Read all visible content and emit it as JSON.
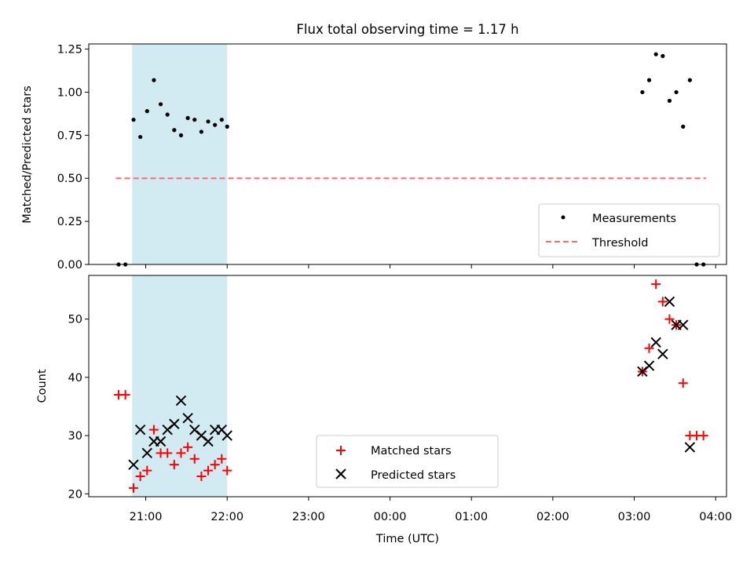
{
  "title": "Flux total observing time = 1.17 h",
  "shared_x": {
    "label": "Time (UTC)",
    "range": [
      "2023-01-01T20:18",
      "2023-01-02T04:08"
    ],
    "ticks": [
      {
        "t": "2023-01-01T21:00",
        "label": "21:00"
      },
      {
        "t": "2023-01-01T22:00",
        "label": "22:00"
      },
      {
        "t": "2023-01-01T23:00",
        "label": "23:00"
      },
      {
        "t": "2023-01-02T00:00",
        "label": "00:00"
      },
      {
        "t": "2023-01-02T01:00",
        "label": "01:00"
      },
      {
        "t": "2023-01-02T02:00",
        "label": "02:00"
      },
      {
        "t": "2023-01-02T03:00",
        "label": "03:00"
      },
      {
        "t": "2023-01-02T04:00",
        "label": "04:00"
      }
    ],
    "observing_span": {
      "start": "2023-01-01T20:50",
      "end": "2023-01-01T22:00",
      "color": "#add8e6"
    }
  },
  "colors": {
    "measurement": "#000000",
    "threshold": "#ff6b6b",
    "matched": "#ff0000",
    "predicted": "#000000",
    "span": "#add8e6"
  },
  "chart_data": [
    {
      "type": "scatter",
      "ylabel": "Matched/Predicted stars",
      "ylim": [
        0,
        1.28
      ],
      "yticks": [
        0.0,
        0.25,
        0.5,
        0.75,
        1.0,
        1.25
      ],
      "ytick_labels": [
        "0.00",
        "0.25",
        "0.50",
        "0.75",
        "1.00",
        "1.25"
      ],
      "legend_position": "lower-right",
      "series": [
        {
          "name": "Measurements",
          "marker": "dot",
          "points": [
            {
              "x": "2023-01-01T20:40",
              "y": 0.0
            },
            {
              "x": "2023-01-01T20:45",
              "y": 0.0
            },
            {
              "x": "2023-01-01T20:51",
              "y": 0.84
            },
            {
              "x": "2023-01-01T20:56",
              "y": 0.74
            },
            {
              "x": "2023-01-01T21:01",
              "y": 0.89
            },
            {
              "x": "2023-01-01T21:06",
              "y": 1.07
            },
            {
              "x": "2023-01-01T21:11",
              "y": 0.93
            },
            {
              "x": "2023-01-01T21:16",
              "y": 0.87
            },
            {
              "x": "2023-01-01T21:21",
              "y": 0.78
            },
            {
              "x": "2023-01-01T21:26",
              "y": 0.75
            },
            {
              "x": "2023-01-01T21:31",
              "y": 0.85
            },
            {
              "x": "2023-01-01T21:36",
              "y": 0.84
            },
            {
              "x": "2023-01-01T21:41",
              "y": 0.77
            },
            {
              "x": "2023-01-01T21:46",
              "y": 0.83
            },
            {
              "x": "2023-01-01T21:51",
              "y": 0.81
            },
            {
              "x": "2023-01-01T21:56",
              "y": 0.84
            },
            {
              "x": "2023-01-01T22:00",
              "y": 0.8
            },
            {
              "x": "2023-01-02T03:06",
              "y": 1.0
            },
            {
              "x": "2023-01-02T03:11",
              "y": 1.07
            },
            {
              "x": "2023-01-02T03:16",
              "y": 1.22
            },
            {
              "x": "2023-01-02T03:21",
              "y": 1.21
            },
            {
              "x": "2023-01-02T03:26",
              "y": 0.95
            },
            {
              "x": "2023-01-02T03:31",
              "y": 1.0
            },
            {
              "x": "2023-01-02T03:36",
              "y": 0.8
            },
            {
              "x": "2023-01-02T03:41",
              "y": 1.07
            },
            {
              "x": "2023-01-02T03:46",
              "y": 0.0
            },
            {
              "x": "2023-01-02T03:51",
              "y": 0.0
            }
          ]
        },
        {
          "name": "Threshold",
          "style": "dashed-line",
          "points": [
            {
              "x": "2023-01-01T20:38",
              "y": 0.5
            },
            {
              "x": "2023-01-02T03:53",
              "y": 0.5
            }
          ]
        }
      ]
    },
    {
      "type": "scatter",
      "xlabel": "Time (UTC)",
      "ylabel": "Count",
      "ylim": [
        19.5,
        57.5
      ],
      "yticks": [
        20,
        30,
        40,
        50
      ],
      "ytick_labels": [
        "20",
        "30",
        "40",
        "50"
      ],
      "legend_position": "lower-center",
      "series": [
        {
          "name": "Matched stars",
          "marker": "plus",
          "points": [
            {
              "x": "2023-01-01T20:40",
              "y": 37
            },
            {
              "x": "2023-01-01T20:45",
              "y": 37
            },
            {
              "x": "2023-01-01T20:51",
              "y": 21
            },
            {
              "x": "2023-01-01T20:56",
              "y": 23
            },
            {
              "x": "2023-01-01T21:01",
              "y": 24
            },
            {
              "x": "2023-01-01T21:06",
              "y": 31
            },
            {
              "x": "2023-01-01T21:11",
              "y": 27
            },
            {
              "x": "2023-01-01T21:16",
              "y": 27
            },
            {
              "x": "2023-01-01T21:21",
              "y": 25
            },
            {
              "x": "2023-01-01T21:26",
              "y": 27
            },
            {
              "x": "2023-01-01T21:31",
              "y": 28
            },
            {
              "x": "2023-01-01T21:36",
              "y": 26
            },
            {
              "x": "2023-01-01T21:41",
              "y": 23
            },
            {
              "x": "2023-01-01T21:46",
              "y": 24
            },
            {
              "x": "2023-01-01T21:51",
              "y": 25
            },
            {
              "x": "2023-01-01T21:56",
              "y": 26
            },
            {
              "x": "2023-01-01T22:00",
              "y": 24
            },
            {
              "x": "2023-01-02T03:06",
              "y": 41
            },
            {
              "x": "2023-01-02T03:11",
              "y": 45
            },
            {
              "x": "2023-01-02T03:16",
              "y": 56
            },
            {
              "x": "2023-01-02T03:21",
              "y": 53
            },
            {
              "x": "2023-01-02T03:26",
              "y": 50
            },
            {
              "x": "2023-01-02T03:31",
              "y": 49
            },
            {
              "x": "2023-01-02T03:36",
              "y": 39
            },
            {
              "x": "2023-01-02T03:41",
              "y": 30
            },
            {
              "x": "2023-01-02T03:46",
              "y": 30
            },
            {
              "x": "2023-01-02T03:51",
              "y": 30
            }
          ]
        },
        {
          "name": "Predicted stars",
          "marker": "x",
          "points": [
            {
              "x": "2023-01-01T20:51",
              "y": 25
            },
            {
              "x": "2023-01-01T20:56",
              "y": 31
            },
            {
              "x": "2023-01-01T21:01",
              "y": 27
            },
            {
              "x": "2023-01-01T21:06",
              "y": 29
            },
            {
              "x": "2023-01-01T21:11",
              "y": 29
            },
            {
              "x": "2023-01-01T21:16",
              "y": 31
            },
            {
              "x": "2023-01-01T21:21",
              "y": 32
            },
            {
              "x": "2023-01-01T21:26",
              "y": 36
            },
            {
              "x": "2023-01-01T21:31",
              "y": 33
            },
            {
              "x": "2023-01-01T21:36",
              "y": 31
            },
            {
              "x": "2023-01-01T21:41",
              "y": 30
            },
            {
              "x": "2023-01-01T21:46",
              "y": 29
            },
            {
              "x": "2023-01-01T21:51",
              "y": 31
            },
            {
              "x": "2023-01-01T21:56",
              "y": 31
            },
            {
              "x": "2023-01-01T22:00",
              "y": 30
            },
            {
              "x": "2023-01-02T03:06",
              "y": 41
            },
            {
              "x": "2023-01-02T03:11",
              "y": 42
            },
            {
              "x": "2023-01-02T03:16",
              "y": 46
            },
            {
              "x": "2023-01-02T03:21",
              "y": 44
            },
            {
              "x": "2023-01-02T03:26",
              "y": 53
            },
            {
              "x": "2023-01-02T03:31",
              "y": 49
            },
            {
              "x": "2023-01-02T03:36",
              "y": 49
            },
            {
              "x": "2023-01-02T03:41",
              "y": 28
            }
          ]
        }
      ]
    }
  ]
}
